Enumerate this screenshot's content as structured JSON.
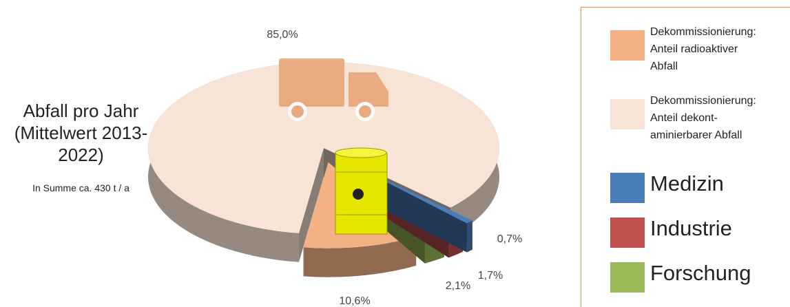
{
  "chart_data": {
    "type": "pie",
    "title": "Abfall pro Jahr (Mittelwert 2013-2022)",
    "subtitle": "In Summe ca. 430 t / a",
    "categories": [
      "Dekommissionierung: Anteil radioaktiver Abfall",
      "Dekommissionierung: Anteil dekont- aminierbarer Abfall",
      "Medizin",
      "Industrie",
      "Forschung"
    ],
    "values": [
      10.6,
      85.0,
      0.7,
      1.7,
      2.1
    ],
    "value_labels": [
      "10,6%",
      "85,0%",
      "0,7%",
      "1,7%",
      "2,1%"
    ],
    "colors": [
      "#f4b183",
      "#f8e4d6",
      "#4a7ebb",
      "#c0504d",
      "#9bbb59"
    ]
  }
}
